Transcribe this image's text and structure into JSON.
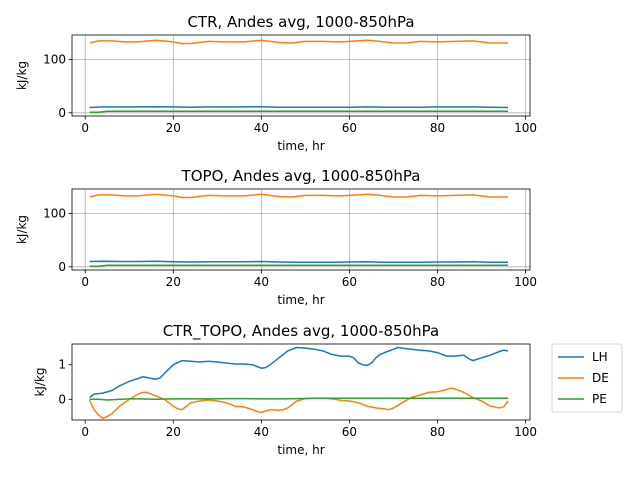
{
  "chart_data": [
    {
      "type": "line",
      "title": "CTR, Andes avg, 1000-850hPa",
      "xlabel": "time, hr",
      "ylabel": "kJ/kg",
      "xlim": [
        -3,
        101
      ],
      "ylim": [
        -6,
        146
      ],
      "xticks": [
        0,
        20,
        40,
        60,
        80,
        100
      ],
      "yticks": [
        0,
        100
      ],
      "grid": true,
      "series": [
        {
          "name": "LH",
          "color": "#1f77b4",
          "x": [
            1,
            4,
            8,
            12,
            16,
            20,
            24,
            28,
            32,
            36,
            40,
            44,
            48,
            52,
            56,
            60,
            64,
            68,
            72,
            76,
            80,
            84,
            88,
            92,
            96
          ],
          "y": [
            10,
            11,
            11,
            11,
            11.5,
            11,
            10.5,
            11,
            11,
            11,
            11.5,
            10.5,
            10.5,
            10.5,
            10.5,
            10.5,
            11,
            10.5,
            10.5,
            10.5,
            11,
            11,
            11,
            10.5,
            10
          ]
        },
        {
          "name": "DE",
          "color": "#ff7f0e",
          "x": [
            1,
            3,
            6,
            9,
            12,
            16,
            20,
            22,
            24,
            28,
            32,
            36,
            40,
            44,
            47,
            50,
            54,
            58,
            62,
            64,
            67,
            70,
            73,
            76,
            80,
            84,
            88,
            92,
            96
          ],
          "y": [
            131,
            135,
            135,
            133,
            133,
            136,
            133,
            130,
            130,
            134,
            133,
            133,
            136,
            132,
            131,
            134,
            134,
            133,
            135,
            136,
            134,
            131,
            131,
            134,
            133,
            134,
            135,
            131,
            131
          ]
        },
        {
          "name": "PE",
          "color": "#2ca02c",
          "x": [
            1,
            3,
            5,
            10,
            20,
            30,
            40,
            50,
            60,
            70,
            80,
            90,
            96
          ],
          "y": [
            1,
            1,
            3,
            3,
            3,
            3,
            3,
            3,
            3,
            3,
            3,
            3,
            3
          ]
        }
      ]
    },
    {
      "type": "line",
      "title": "TOPO, Andes avg, 1000-850hPa",
      "xlabel": "time, hr",
      "ylabel": "kJ/kg",
      "xlim": [
        -3,
        101
      ],
      "ylim": [
        -6,
        146
      ],
      "xticks": [
        0,
        20,
        40,
        60,
        80,
        100
      ],
      "yticks": [
        0,
        100
      ],
      "grid": true,
      "series": [
        {
          "name": "LH",
          "color": "#1f77b4",
          "x": [
            1,
            4,
            8,
            12,
            16,
            20,
            24,
            28,
            32,
            36,
            40,
            44,
            48,
            52,
            56,
            60,
            64,
            68,
            72,
            76,
            80,
            84,
            88,
            92,
            96
          ],
          "y": [
            10,
            10.5,
            10,
            10,
            10.5,
            9.5,
            9,
            9.5,
            9.5,
            9.5,
            10,
            9,
            8.5,
            8.5,
            8.5,
            9,
            9.5,
            8.5,
            8.5,
            8.5,
            9,
            9,
            9.5,
            8.5,
            8.5
          ]
        },
        {
          "name": "DE",
          "color": "#ff7f0e",
          "x": [
            1,
            3,
            6,
            9,
            12,
            16,
            20,
            22,
            24,
            28,
            32,
            36,
            40,
            44,
            47,
            50,
            54,
            58,
            62,
            64,
            67,
            70,
            73,
            76,
            80,
            84,
            88,
            92,
            96
          ],
          "y": [
            131,
            135,
            135,
            133,
            133,
            136,
            133,
            130,
            130,
            134,
            133,
            133,
            136,
            132,
            131,
            134,
            134,
            133,
            135,
            136,
            134,
            131,
            131,
            134,
            133,
            134,
            135,
            131,
            131
          ]
        },
        {
          "name": "PE",
          "color": "#2ca02c",
          "x": [
            1,
            3,
            5,
            10,
            20,
            30,
            40,
            50,
            60,
            70,
            80,
            90,
            96
          ],
          "y": [
            1,
            1,
            3,
            3,
            3,
            3,
            3,
            3,
            3,
            3,
            3,
            3,
            3
          ]
        }
      ]
    },
    {
      "type": "line",
      "title": "CTR_TOPO, Andes avg, 1000-850hPa",
      "xlabel": "time, hr",
      "ylabel": "kJ/kg",
      "xlim": [
        -3,
        101
      ],
      "ylim": [
        -0.6,
        1.6
      ],
      "xticks": [
        0,
        20,
        40,
        60,
        80,
        100
      ],
      "yticks": [
        0,
        1
      ],
      "grid": false,
      "legend": {
        "placement": "outside-right",
        "entries": [
          "LH",
          "DE",
          "PE"
        ]
      },
      "series": [
        {
          "name": "LH",
          "color": "#1f77b4",
          "x": [
            1,
            2,
            4,
            6,
            8,
            10,
            12,
            13,
            14,
            15,
            16,
            17,
            18,
            20,
            22,
            24,
            26,
            28,
            30,
            32,
            34,
            36,
            38,
            39,
            40,
            41,
            42,
            44,
            46,
            47,
            48,
            50,
            52,
            54,
            56,
            58,
            60,
            61,
            62,
            63,
            64,
            65,
            66,
            67,
            68,
            70,
            71,
            72,
            74,
            76,
            78,
            80,
            82,
            84,
            86,
            87,
            88,
            90,
            92,
            94,
            95,
            96
          ],
          "y": [
            0.05,
            0.15,
            0.18,
            0.25,
            0.4,
            0.52,
            0.6,
            0.65,
            0.63,
            0.6,
            0.58,
            0.62,
            0.75,
            1.0,
            1.12,
            1.1,
            1.08,
            1.1,
            1.08,
            1.05,
            1.02,
            1.02,
            1.0,
            0.95,
            0.9,
            0.92,
            1.0,
            1.2,
            1.4,
            1.45,
            1.5,
            1.48,
            1.45,
            1.4,
            1.3,
            1.25,
            1.25,
            1.2,
            1.05,
            1.0,
            0.98,
            1.05,
            1.2,
            1.3,
            1.35,
            1.45,
            1.5,
            1.48,
            1.45,
            1.42,
            1.4,
            1.35,
            1.25,
            1.25,
            1.28,
            1.18,
            1.12,
            1.2,
            1.28,
            1.38,
            1.42,
            1.4
          ]
        },
        {
          "name": "DE",
          "color": "#ff7f0e",
          "x": [
            1,
            2,
            3,
            4,
            5,
            6,
            8,
            10,
            12,
            13,
            14,
            15,
            16,
            18,
            20,
            21,
            22,
            24,
            26,
            28,
            30,
            32,
            34,
            36,
            38,
            39,
            40,
            42,
            44,
            45,
            46,
            47,
            48,
            50,
            52,
            54,
            56,
            58,
            60,
            62,
            64,
            66,
            68,
            69,
            70,
            72,
            74,
            76,
            78,
            80,
            82,
            83,
            84,
            85,
            86,
            88,
            90,
            92,
            94,
            95,
            96
          ],
          "y": [
            -0.02,
            -0.3,
            -0.45,
            -0.55,
            -0.5,
            -0.42,
            -0.18,
            0.0,
            0.15,
            0.2,
            0.2,
            0.15,
            0.1,
            0.0,
            -0.2,
            -0.28,
            -0.3,
            -0.1,
            -0.05,
            -0.02,
            -0.05,
            -0.1,
            -0.2,
            -0.22,
            -0.3,
            -0.35,
            -0.38,
            -0.3,
            -0.32,
            -0.3,
            -0.25,
            -0.15,
            -0.05,
            0.02,
            0.03,
            0.03,
            0.01,
            -0.03,
            -0.05,
            -0.1,
            -0.2,
            -0.25,
            -0.28,
            -0.3,
            -0.25,
            -0.1,
            0.05,
            0.12,
            0.2,
            0.22,
            0.28,
            0.32,
            0.3,
            0.25,
            0.2,
            0.05,
            -0.05,
            -0.2,
            -0.25,
            -0.22,
            -0.05
          ]
        },
        {
          "name": "PE",
          "color": "#2ca02c",
          "x": [
            1,
            3,
            5,
            8,
            10,
            12,
            16,
            20,
            24,
            28,
            32,
            36,
            40,
            44,
            48,
            52,
            56,
            60,
            64,
            68,
            72,
            76,
            80,
            84,
            88,
            92,
            96
          ],
          "y": [
            0.0,
            0.0,
            -0.02,
            0.0,
            0.01,
            0.01,
            0.0,
            0.01,
            0.01,
            0.01,
            0.02,
            0.02,
            0.01,
            0.01,
            0.02,
            0.03,
            0.03,
            0.03,
            0.03,
            0.03,
            0.03,
            0.03,
            0.03,
            0.03,
            0.03,
            0.03,
            0.03
          ]
        }
      ]
    }
  ]
}
